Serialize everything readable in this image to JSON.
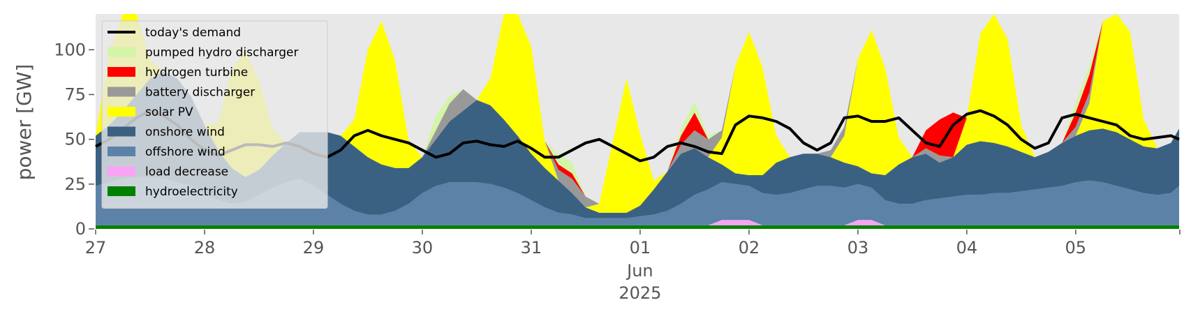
{
  "chart_data": {
    "type": "area",
    "title": "",
    "ylabel": "power [GW]",
    "xlabel": "",
    "ylim": [
      0,
      120
    ],
    "yticks": [
      0,
      25,
      50,
      75,
      100
    ],
    "ytick_labels": [
      "0",
      "25",
      "50",
      "75",
      "100"
    ],
    "x_unit": "days since 27 May 2025 00:00",
    "xlim": [
      0,
      9.95
    ],
    "xticks": [
      0,
      1,
      2,
      3,
      4,
      5,
      6,
      7,
      8,
      9
    ],
    "xtick_labels": [
      "27",
      "28",
      "29",
      "30",
      "31",
      "01",
      "02",
      "03",
      "04",
      "05"
    ],
    "xtick_sublabels": {
      "month": "Jun",
      "year": "2025",
      "under_tick_index": 5
    },
    "grid": false,
    "background": "#e8e8e8",
    "legend": {
      "placement": "top-left",
      "entries": [
        {
          "label": "today's demand",
          "color": "#000000",
          "kind": "line"
        },
        {
          "label": "pumped hydro discharger",
          "color": "#d2f5a6",
          "kind": "patch"
        },
        {
          "label": "hydrogen turbine",
          "color": "#ff0000",
          "kind": "patch"
        },
        {
          "label": "battery discharger",
          "color": "#999999",
          "kind": "patch"
        },
        {
          "label": "solar PV",
          "color": "#ffff00",
          "kind": "patch"
        },
        {
          "label": "onshore wind",
          "color": "#3b6182",
          "kind": "patch"
        },
        {
          "label": "offshore wind",
          "color": "#5c82a8",
          "kind": "patch"
        },
        {
          "label": "load decrease",
          "color": "#f9a3f5",
          "kind": "patch"
        },
        {
          "label": "hydroelectricity",
          "color": "#008000",
          "kind": "patch"
        }
      ]
    },
    "series_sample_step_days": 0.125,
    "stack_order_bottom_to_top": [
      "hydroelectricity",
      "load decrease",
      "offshore wind",
      "onshore wind",
      "solar PV",
      "battery discharger",
      "hydrogen turbine",
      "pumped hydro discharger"
    ],
    "series": [
      {
        "name": "hydroelectricity",
        "color": "#008000",
        "values": [
          2,
          2,
          2,
          2,
          2,
          2,
          2,
          2,
          2,
          2,
          2,
          2,
          2,
          2,
          2,
          2,
          2,
          2,
          2,
          2,
          2,
          2,
          2,
          2,
          2,
          2,
          2,
          2,
          2,
          2,
          2,
          2,
          2,
          2,
          2,
          2,
          2,
          2,
          2,
          2,
          2,
          2,
          2,
          2,
          2,
          2,
          2,
          2,
          2,
          2,
          2,
          2,
          2,
          2,
          2,
          2,
          2,
          2,
          2,
          2,
          2,
          2,
          2,
          2,
          2,
          2,
          2,
          2,
          2,
          2,
          2,
          2,
          2,
          2,
          2,
          2,
          2,
          2,
          2,
          2,
          2
        ]
      },
      {
        "name": "load decrease",
        "color": "#f9a3f5",
        "values": [
          0,
          0,
          0,
          0,
          0,
          0,
          0,
          0,
          0,
          0,
          0,
          0,
          0,
          0,
          0,
          0,
          0,
          0,
          0,
          0,
          0,
          0,
          0,
          0,
          0,
          0,
          0,
          0,
          0,
          0,
          0,
          0,
          0,
          0,
          0,
          0,
          0,
          0,
          0,
          0,
          0,
          0,
          0,
          0,
          0,
          0,
          3,
          3,
          3,
          0,
          0,
          0,
          0,
          0,
          0,
          0,
          3,
          3,
          0,
          0,
          0,
          0,
          0,
          0,
          0,
          0,
          0,
          0,
          0,
          0,
          0,
          0,
          0,
          0,
          0,
          0,
          0,
          0,
          0,
          0,
          0
        ]
      },
      {
        "name": "offshore wind",
        "color": "#5c82a8",
        "values": [
          22,
          24,
          26,
          27,
          27,
          26,
          24,
          22,
          18,
          14,
          12,
          13,
          17,
          21,
          24,
          26,
          22,
          17,
          12,
          8,
          6,
          6,
          8,
          12,
          18,
          22,
          24,
          24,
          24,
          23,
          21,
          18,
          14,
          10,
          7,
          6,
          4,
          4,
          4,
          4,
          5,
          6,
          8,
          12,
          17,
          20,
          21,
          20,
          19,
          18,
          17,
          18,
          20,
          22,
          22,
          21,
          20,
          18,
          14,
          12,
          12,
          14,
          15,
          16,
          17,
          17,
          18,
          18,
          19,
          20,
          21,
          22,
          24,
          25,
          24,
          22,
          20,
          18,
          17,
          18,
          22
        ]
      },
      {
        "name": "onshore wind",
        "color": "#3b6182",
        "values": [
          28,
          32,
          38,
          46,
          55,
          60,
          58,
          50,
          38,
          28,
          20,
          14,
          14,
          18,
          22,
          26,
          30,
          35,
          38,
          36,
          32,
          28,
          24,
          20,
          20,
          26,
          34,
          40,
          46,
          44,
          38,
          32,
          26,
          22,
          18,
          12,
          6,
          3,
          3,
          3,
          6,
          14,
          22,
          28,
          26,
          18,
          10,
          6,
          6,
          10,
          18,
          20,
          20,
          18,
          16,
          14,
          10,
          8,
          14,
          22,
          26,
          26,
          20,
          22,
          28,
          30,
          28,
          26,
          22,
          18,
          20,
          24,
          26,
          28,
          30,
          30,
          28,
          26,
          26,
          28,
          32
        ]
      },
      {
        "name": "solar PV",
        "color": "#ffff00",
        "values": [
          0,
          40,
          70,
          70,
          10,
          0,
          0,
          0,
          0,
          15,
          55,
          70,
          50,
          15,
          0,
          0,
          0,
          0,
          0,
          15,
          60,
          80,
          60,
          15,
          0,
          0,
          0,
          0,
          0,
          15,
          60,
          80,
          60,
          15,
          0,
          0,
          0,
          5,
          40,
          75,
          40,
          5,
          0,
          0,
          0,
          0,
          15,
          60,
          80,
          60,
          15,
          0,
          0,
          0,
          0,
          15,
          60,
          80,
          60,
          15,
          0,
          0,
          0,
          0,
          15,
          60,
          80,
          60,
          15,
          0,
          0,
          0,
          0,
          15,
          60,
          80,
          60,
          15,
          0,
          0,
          0
        ]
      },
      {
        "name": "battery discharger",
        "color": "#999999",
        "values": [
          0,
          0,
          0,
          0,
          0,
          0,
          0,
          0,
          0,
          0,
          0,
          0,
          0,
          0,
          0,
          0,
          0,
          0,
          0,
          0,
          0,
          0,
          0,
          0,
          0,
          5,
          10,
          12,
          0,
          0,
          0,
          0,
          0,
          0,
          6,
          8,
          6,
          0,
          0,
          0,
          0,
          0,
          0,
          5,
          10,
          10,
          4,
          0,
          0,
          0,
          0,
          0,
          0,
          0,
          4,
          5,
          0,
          0,
          0,
          0,
          0,
          3,
          4,
          0,
          0,
          0,
          0,
          0,
          0,
          0,
          0,
          0,
          5,
          6,
          0,
          0,
          0,
          0,
          0,
          0,
          0
        ]
      },
      {
        "name": "hydrogen turbine",
        "color": "#ff0000",
        "values": [
          0,
          0,
          0,
          0,
          0,
          0,
          0,
          0,
          0,
          0,
          0,
          0,
          0,
          0,
          0,
          0,
          0,
          0,
          0,
          0,
          0,
          0,
          0,
          0,
          0,
          0,
          0,
          0,
          0,
          0,
          0,
          0,
          0,
          0,
          3,
          3,
          0,
          0,
          0,
          0,
          0,
          0,
          0,
          5,
          10,
          0,
          0,
          0,
          0,
          0,
          0,
          0,
          0,
          0,
          0,
          0,
          0,
          0,
          0,
          0,
          0,
          10,
          20,
          25,
          0,
          0,
          0,
          0,
          0,
          0,
          0,
          0,
          8,
          10,
          0,
          0,
          0,
          0,
          0,
          0,
          0
        ]
      },
      {
        "name": "pumped hydro discharger",
        "color": "#d2f5a6",
        "values": [
          0,
          0,
          0,
          0,
          0,
          0,
          0,
          0,
          0,
          0,
          0,
          0,
          0,
          0,
          0,
          0,
          0,
          0,
          0,
          0,
          0,
          0,
          0,
          0,
          0,
          8,
          4,
          0,
          0,
          0,
          0,
          0,
          0,
          0,
          6,
          6,
          0,
          0,
          0,
          0,
          0,
          0,
          0,
          4,
          6,
          2,
          0,
          0,
          0,
          0,
          0,
          0,
          0,
          0,
          0,
          0,
          0,
          0,
          0,
          0,
          0,
          0,
          0,
          0,
          0,
          0,
          0,
          0,
          0,
          0,
          0,
          0,
          5,
          5,
          0,
          0,
          0,
          0,
          0,
          0,
          0
        ]
      },
      {
        "name": "today's demand",
        "color": "#000000",
        "values": [
          46,
          50,
          56,
          62,
          66,
          63,
          58,
          50,
          44,
          41,
          44,
          47,
          47,
          46,
          48,
          46,
          42,
          40,
          44,
          52,
          55,
          52,
          50,
          48,
          44,
          40,
          42,
          48,
          49,
          47,
          46,
          49,
          45,
          40,
          40,
          44,
          48,
          50,
          46,
          42,
          38,
          40,
          46,
          48,
          46,
          43,
          42,
          58,
          63,
          62,
          60,
          56,
          48,
          44,
          48,
          62,
          63,
          60,
          60,
          62,
          55,
          48,
          46,
          58,
          64,
          66,
          63,
          58,
          50,
          45,
          48,
          62,
          64,
          62,
          60,
          58,
          52,
          50,
          51,
          52,
          50
        ]
      }
    ]
  }
}
